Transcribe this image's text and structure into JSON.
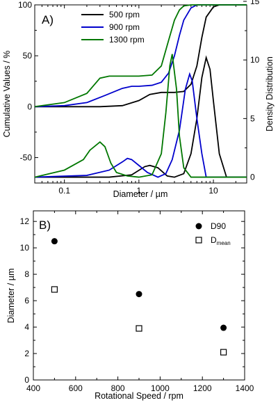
{
  "chart_data": [
    {
      "panel_label": "A)",
      "type": "line",
      "xlabel": "Diameter / µm",
      "ylabel_left": "Cumulative Values / %",
      "ylabel_right": "Density Distribution",
      "x_scale": "log",
      "xlim": [
        0.04,
        28
      ],
      "ylim_left": [
        -75,
        100
      ],
      "ylim_right": [
        -0.5,
        14.7
      ],
      "x_ticks": [
        0.1,
        1,
        10
      ],
      "x_tick_labels": [
        "0.1",
        "1",
        "10"
      ],
      "y_left_ticks": [
        -50,
        0,
        50,
        100
      ],
      "y_left_tick_labels": [
        "-50",
        "0",
        "50",
        "100"
      ],
      "y_right_ticks": [
        0,
        5,
        10,
        15
      ],
      "y_right_tick_labels": [
        "0",
        "5",
        "10",
        "15"
      ],
      "legend_position": "top-center",
      "series": [
        {
          "name": "500 rpm",
          "color": "#000000",
          "cumulative_x": [
            0.04,
            0.3,
            0.6,
            1.0,
            1.4,
            2.0,
            3.0,
            4.0,
            5.0,
            6.0,
            7.0,
            8.0,
            10.0,
            12.0,
            15.0,
            28.0
          ],
          "cumulative_y": [
            0,
            0,
            1,
            6,
            12,
            14,
            14,
            15,
            22,
            40,
            68,
            88,
            98,
            100,
            100,
            100
          ],
          "density_x": [
            0.04,
            0.4,
            0.8,
            1.2,
            1.4,
            1.8,
            2.4,
            3.0,
            4.0,
            5.0,
            6.0,
            7.0,
            8.0,
            9.0,
            10.0,
            12.0,
            15.0,
            28.0
          ],
          "density_y": [
            0,
            0,
            0.2,
            0.9,
            1.0,
            0.8,
            0.1,
            0,
            0.3,
            2.0,
            5.0,
            8.5,
            10.2,
            9.2,
            6.5,
            2.0,
            0,
            0
          ]
        },
        {
          "name": "900 rpm",
          "color": "#0000cc",
          "cumulative_x": [
            0.04,
            0.1,
            0.2,
            0.35,
            0.6,
            0.8,
            1.0,
            1.5,
            2.0,
            2.5,
            3.0,
            3.5,
            4.0,
            5.0,
            6.0,
            8.0,
            28.0
          ],
          "cumulative_y": [
            0,
            1,
            4,
            11,
            18,
            20,
            20,
            21,
            24,
            33,
            50,
            70,
            85,
            97,
            100,
            100,
            100
          ],
          "density_x": [
            0.04,
            0.2,
            0.4,
            0.6,
            0.7,
            0.8,
            1.0,
            1.3,
            1.8,
            2.3,
            2.8,
            3.5,
            4.2,
            4.8,
            5.2,
            6.0,
            7.0,
            8.0,
            28.0
          ],
          "density_y": [
            0,
            0.15,
            0.6,
            1.3,
            1.6,
            1.5,
            1.0,
            0.4,
            0,
            0.3,
            1.5,
            4.0,
            7.5,
            8.8,
            8.2,
            5.0,
            2.0,
            0,
            0
          ]
        },
        {
          "name": "1300 rpm",
          "color": "#007700",
          "cumulative_x": [
            0.04,
            0.1,
            0.2,
            0.3,
            0.4,
            0.5,
            1.0,
            1.5,
            2.0,
            2.5,
            3.0,
            3.5,
            4.0,
            5.0,
            28.0
          ],
          "cumulative_y": [
            0,
            4,
            13,
            28,
            30,
            30,
            30,
            31,
            40,
            65,
            85,
            95,
            99,
            100,
            100
          ],
          "density_x": [
            0.04,
            0.1,
            0.18,
            0.22,
            0.3,
            0.35,
            0.42,
            0.5,
            0.7,
            1.0,
            1.5,
            2.0,
            2.3,
            2.6,
            2.8,
            3.2,
            3.5,
            4.0,
            5.0,
            28.0
          ],
          "density_y": [
            0,
            0.6,
            1.5,
            2.3,
            3.0,
            2.6,
            1.2,
            0.4,
            0.1,
            0,
            0.2,
            2.0,
            5.5,
            9.5,
            10.5,
            7.5,
            3.5,
            0.8,
            0,
            0
          ]
        }
      ]
    },
    {
      "panel_label": "B)",
      "type": "scatter",
      "xlabel": "Rotational Speed / rpm",
      "ylabel": "Diameter / µm",
      "xlim": [
        400,
        1400
      ],
      "ylim": [
        0,
        12.8
      ],
      "x_ticks": [
        400,
        600,
        800,
        1000,
        1200,
        1400
      ],
      "x_tick_labels": [
        "400",
        "600",
        "800",
        "1000",
        "1200",
        "1400"
      ],
      "y_ticks": [
        0,
        2,
        4,
        6,
        8,
        10,
        12
      ],
      "y_tick_labels": [
        "0",
        "2",
        "4",
        "6",
        "8",
        "10",
        "12"
      ],
      "legend_position": "top-right",
      "series": [
        {
          "name": "D90",
          "marker": "filled-circle",
          "x": [
            500,
            900,
            1300
          ],
          "y": [
            10.5,
            6.5,
            3.95
          ]
        },
        {
          "name": "D",
          "name_subscript": "mean",
          "marker": "open-square",
          "x": [
            500,
            900,
            1300
          ],
          "y": [
            6.85,
            3.9,
            2.1
          ]
        }
      ]
    }
  ]
}
